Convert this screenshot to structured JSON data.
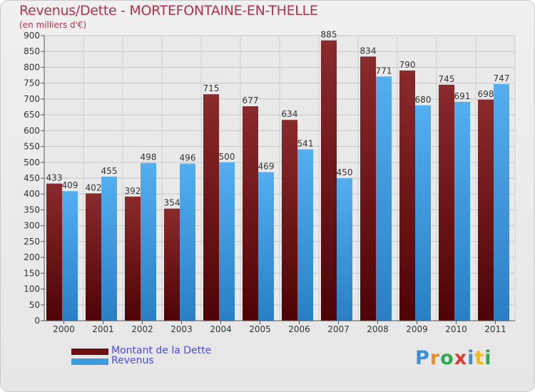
{
  "header": {
    "title": "Revenus/Dette - MORTEFONTAINE-EN-THELLE",
    "subtitle": "(en milliers d'€)"
  },
  "chart_data": {
    "type": "bar",
    "title": "Revenus/Dette - MORTEFONTAINE-EN-THELLE",
    "ylabel": "(en milliers d'€)",
    "xlabel": "",
    "categories": [
      "2000",
      "2001",
      "2002",
      "2003",
      "2004",
      "2005",
      "2006",
      "2007",
      "2008",
      "2009",
      "2010",
      "2011"
    ],
    "series": [
      {
        "name": "Montant de la Dette",
        "color": "#7a1f22",
        "values": [
          433,
          402,
          392,
          354,
          715,
          677,
          634,
          885,
          834,
          790,
          745,
          698
        ]
      },
      {
        "name": "Revenus",
        "color": "#3d9be0",
        "values": [
          409,
          455,
          498,
          496,
          500,
          469,
          541,
          450,
          771,
          680,
          691,
          747
        ]
      }
    ],
    "ylim": [
      0,
      900
    ],
    "yticks": [
      0,
      50,
      100,
      150,
      200,
      250,
      300,
      350,
      400,
      450,
      500,
      550,
      600,
      650,
      700,
      750,
      800,
      850,
      900
    ],
    "grid": true,
    "legend_position": "bottom-left"
  },
  "legend": {
    "items": [
      {
        "label": "Montant de la Dette",
        "color": "#6b0f12"
      },
      {
        "label": "Revenus",
        "color": "#3d9be0"
      }
    ]
  },
  "brand": {
    "letters": [
      "P",
      "r",
      "o",
      "x",
      "i",
      "t",
      "i"
    ],
    "colors": [
      "#3b8fd8",
      "#f08a24",
      "#2fa84f",
      "#e03a2f",
      "#3b8fd8",
      "#f0b820",
      "#2fa84f"
    ]
  }
}
